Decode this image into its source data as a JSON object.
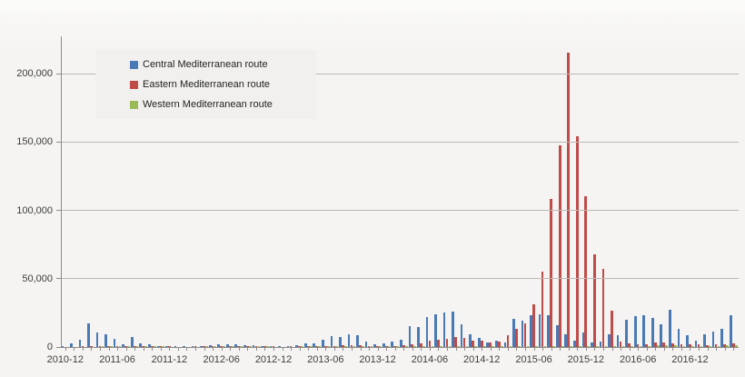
{
  "chart_data": {
    "type": "bar",
    "title": "",
    "xlabel": "",
    "ylabel": "",
    "grid": true,
    "legend_position": "top-left",
    "ylim": [
      0,
      227000
    ],
    "y_ticks": [
      {
        "value": 0,
        "label": "0"
      },
      {
        "value": 50000,
        "label": "50,000"
      },
      {
        "value": 100000,
        "label": "100,000"
      },
      {
        "value": 150000,
        "label": "150,000"
      },
      {
        "value": 200000,
        "label": "200,000"
      }
    ],
    "x_labeled_every_n_months": 6,
    "x_shown_tick_labels": [
      "2010-12",
      "2011-06",
      "2011-12",
      "2012-06",
      "2012-12",
      "2013-06",
      "2013-12",
      "2014-06",
      "2014-12",
      "2015-06",
      "2015-12",
      "2016-06",
      "2016-12"
    ],
    "categories": [
      "2010-12",
      "2011-01",
      "2011-02",
      "2011-03",
      "2011-04",
      "2011-05",
      "2011-06",
      "2011-07",
      "2011-08",
      "2011-09",
      "2011-10",
      "2011-11",
      "2011-12",
      "2012-01",
      "2012-02",
      "2012-03",
      "2012-04",
      "2012-05",
      "2012-06",
      "2012-07",
      "2012-08",
      "2012-09",
      "2012-10",
      "2012-11",
      "2012-12",
      "2013-01",
      "2013-02",
      "2013-03",
      "2013-04",
      "2013-05",
      "2013-06",
      "2013-07",
      "2013-08",
      "2013-09",
      "2013-10",
      "2013-11",
      "2013-12",
      "2014-01",
      "2014-02",
      "2014-03",
      "2014-04",
      "2014-05",
      "2014-06",
      "2014-07",
      "2014-08",
      "2014-09",
      "2014-10",
      "2014-11",
      "2014-12",
      "2015-01",
      "2015-02",
      "2015-03",
      "2015-04",
      "2015-05",
      "2015-06",
      "2015-07",
      "2015-08",
      "2015-09",
      "2015-10",
      "2015-11",
      "2015-12",
      "2016-01",
      "2016-02",
      "2016-03",
      "2016-04",
      "2016-05",
      "2016-06",
      "2016-07",
      "2016-08",
      "2016-09",
      "2016-10",
      "2016-11",
      "2016-12",
      "2017-01",
      "2017-02",
      "2017-03",
      "2017-04",
      "2017-05"
    ],
    "series": [
      {
        "name": "Central Mediterranean route",
        "color": "#4a7ab5",
        "values": [
          1000,
          3000,
          5200,
          17500,
          10500,
          9600,
          5700,
          2000,
          7300,
          3000,
          1800,
          1000,
          800,
          500,
          700,
          800,
          1000,
          1400,
          1800,
          2200,
          2000,
          1600,
          1200,
          900,
          600,
          700,
          900,
          1400,
          3000,
          2700,
          5500,
          8200,
          7500,
          9600,
          8900,
          4100,
          2000,
          2700,
          4100,
          5500,
          15300,
          14300,
          22200,
          23800,
          25000,
          26100,
          16300,
          9600,
          6400,
          3300,
          4400,
          3200,
          20800,
          19600,
          23000,
          24200,
          23000,
          16200,
          9400,
          4800,
          10500,
          3600,
          4100,
          9600,
          8900,
          19900,
          22300,
          23500,
          21000,
          16500,
          27000,
          13500,
          8400,
          4400,
          9000,
          11000,
          13500,
          23000
        ]
      },
      {
        "name": "Eastern Mediterranean route",
        "color": "#bf4c49",
        "values": [
          300,
          300,
          350,
          400,
          400,
          450,
          500,
          550,
          600,
          550,
          500,
          400,
          350,
          300,
          300,
          350,
          400,
          500,
          700,
          900,
          900,
          800,
          700,
          500,
          400,
          300,
          350,
          400,
          500,
          600,
          800,
          1000,
          1100,
          1200,
          1100,
          900,
          700,
          800,
          1000,
          1300,
          2000,
          2700,
          4600,
          5400,
          6100,
          7300,
          6600,
          4400,
          4500,
          3200,
          3900,
          8400,
          13500,
          17000,
          31500,
          55000,
          108000,
          147500,
          215000,
          154000,
          110000,
          67500,
          57000,
          26500,
          3700,
          2400,
          2000,
          2300,
          3400,
          3100,
          3000,
          2200,
          1900,
          1800,
          1600,
          1900,
          2200,
          2500
        ]
      },
      {
        "name": "Western Mediterranean route",
        "color": "#9aba58",
        "values": [
          300,
          300,
          250,
          300,
          350,
          400,
          450,
          500,
          550,
          500,
          400,
          350,
          300,
          250,
          250,
          300,
          350,
          400,
          500,
          550,
          600,
          550,
          450,
          350,
          300,
          250,
          300,
          350,
          400,
          450,
          550,
          600,
          650,
          600,
          500,
          400,
          350,
          350,
          400,
          450,
          500,
          550,
          650,
          700,
          800,
          750,
          650,
          500,
          450,
          400,
          450,
          500,
          550,
          600,
          700,
          800,
          900,
          850,
          800,
          650,
          550,
          500,
          550,
          600,
          700,
          800,
          900,
          1000,
          1200,
          1100,
          1300,
          900,
          700,
          600,
          700,
          900,
          1100,
          1300
        ]
      }
    ],
    "axis_color": "#8e8c8a",
    "gridline_color": "#bbb9b7",
    "background_color": "#f5f4f2",
    "legend_background_color": "#f1f0ee"
  }
}
